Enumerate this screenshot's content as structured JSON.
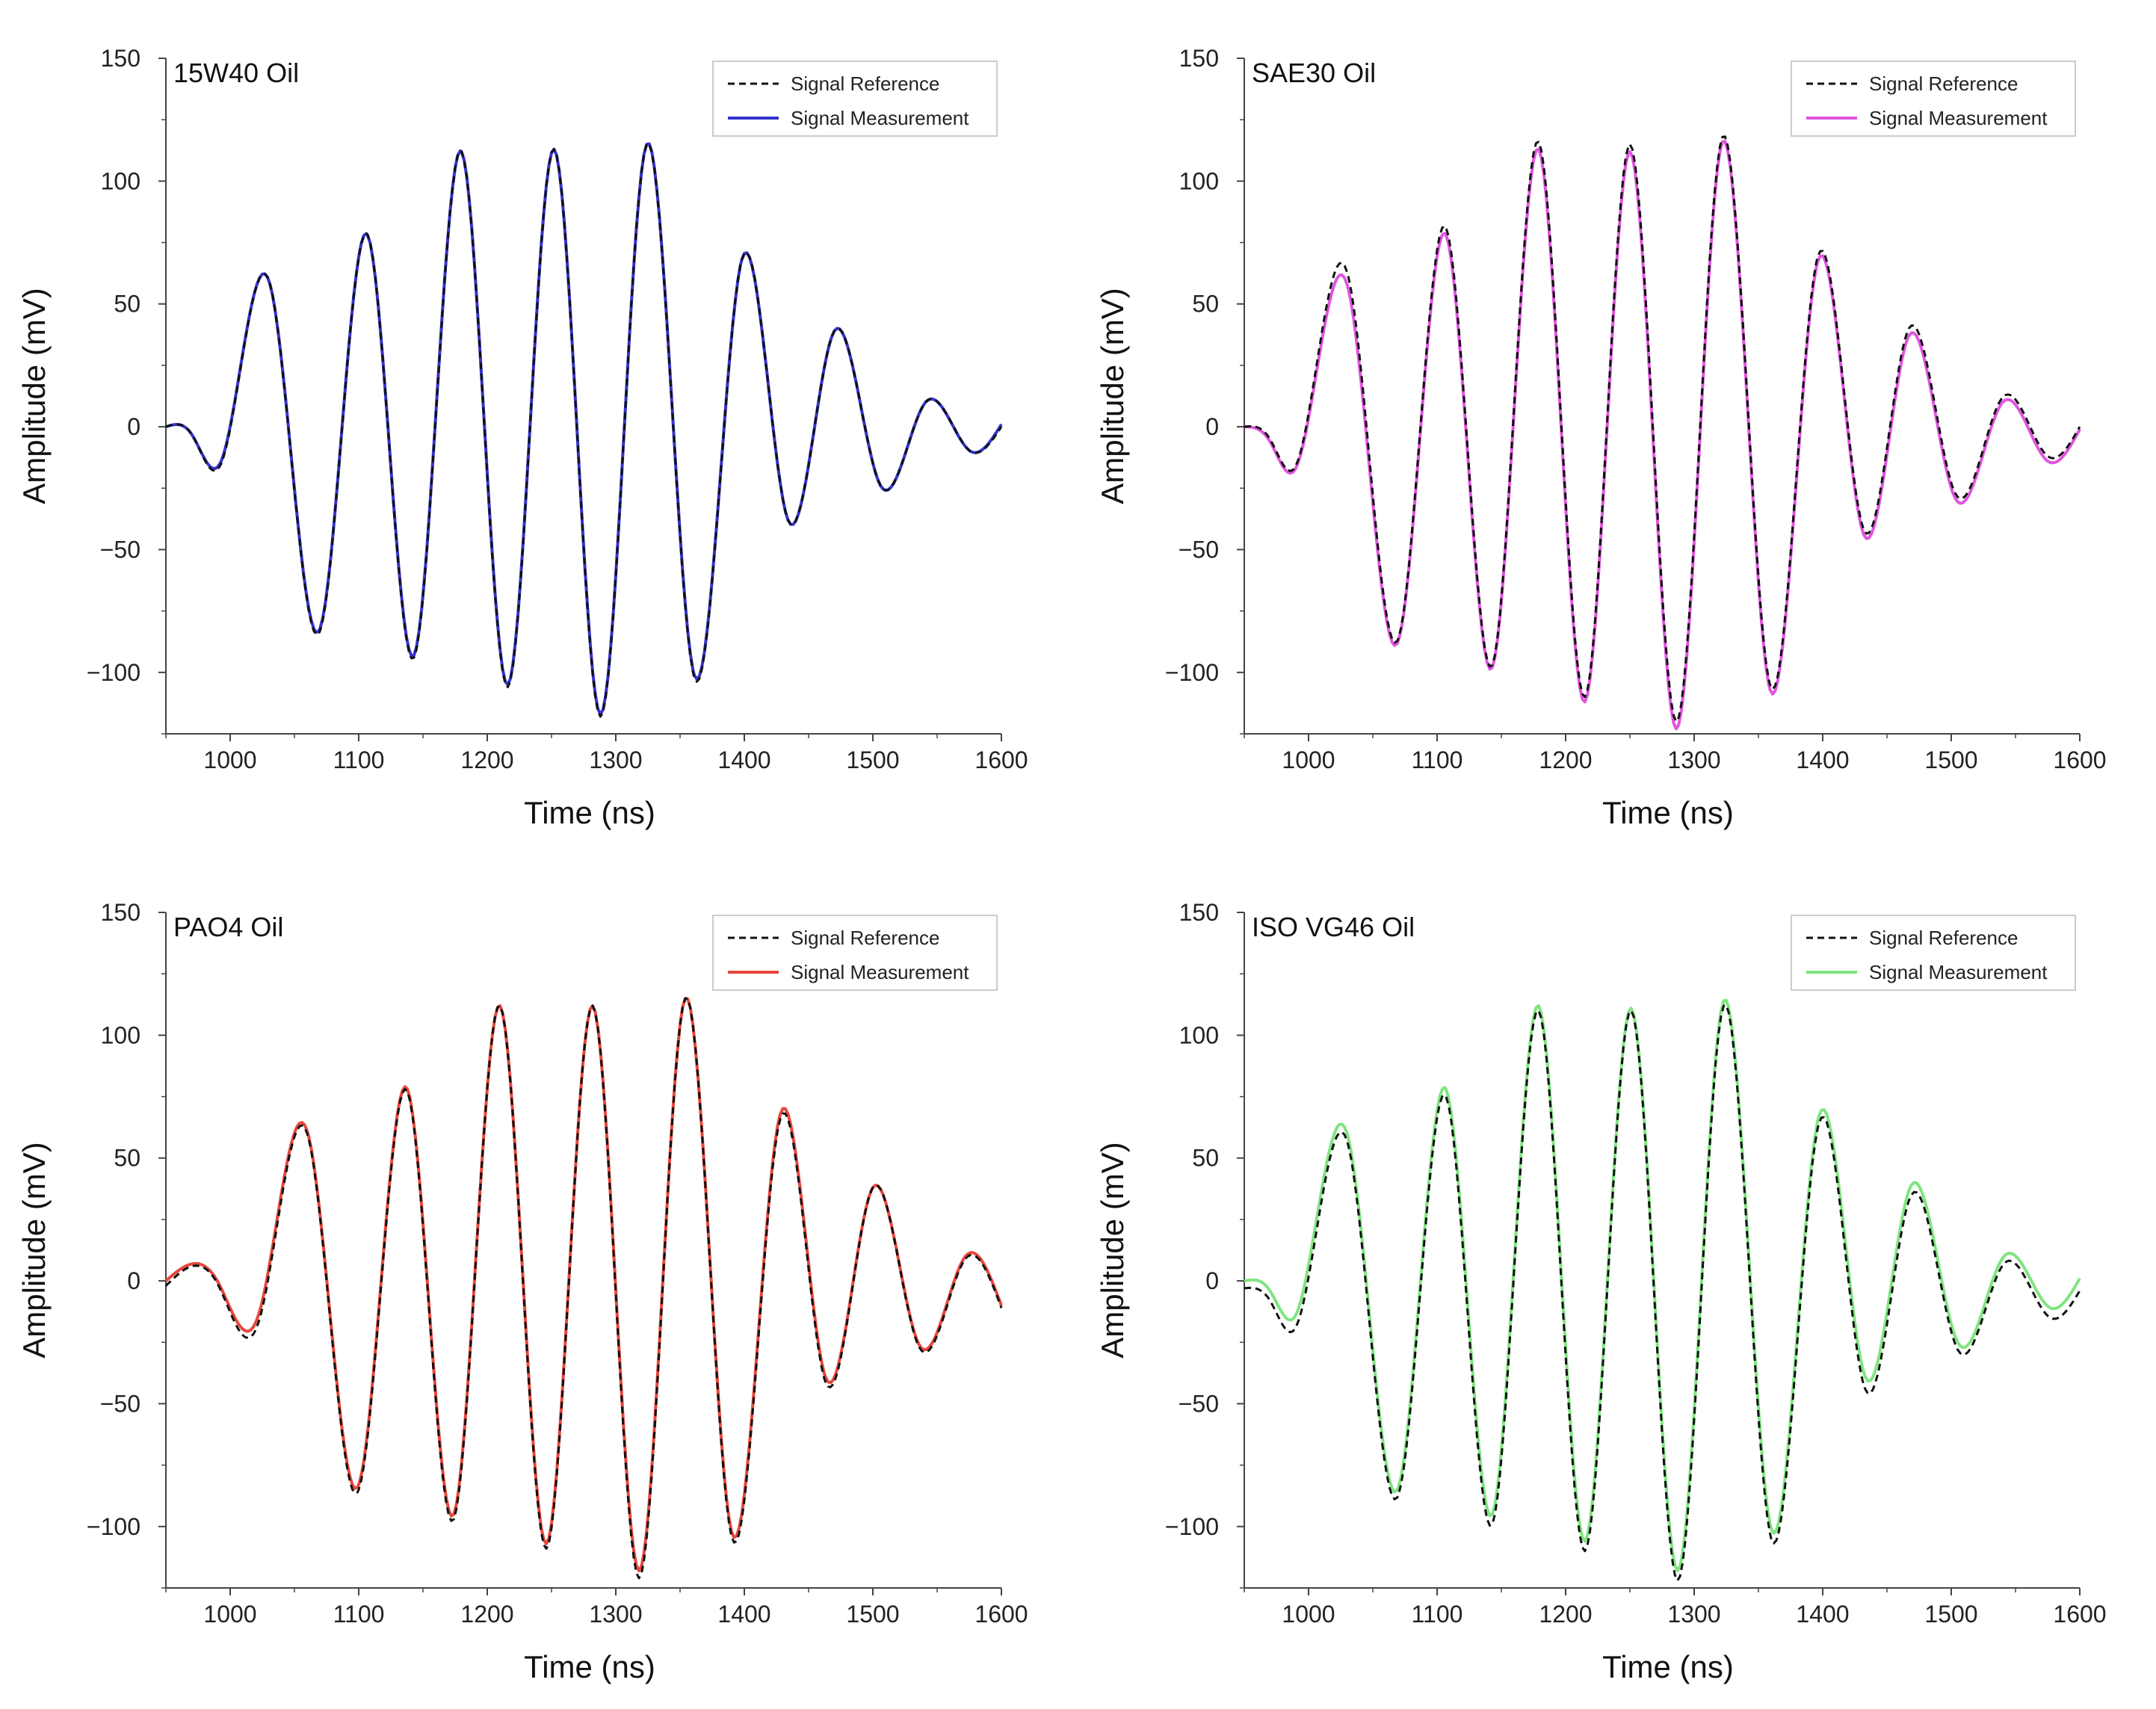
{
  "figure": {
    "type": "line"
  },
  "chart_data": [
    {
      "type": "line",
      "title": "15W40 Oil",
      "xlabel": "Time (ns)",
      "ylabel": "Amplitude (mV)",
      "xlim": [
        950,
        1600
      ],
      "ylim": [
        -125,
        150
      ],
      "xticks": [
        1000,
        1100,
        1200,
        1300,
        1400,
        1500,
        1600
      ],
      "yticks": [
        150,
        100,
        50,
        0,
        -50,
        -100
      ],
      "legend": "top-right",
      "measurement_color": "#3333cc",
      "reference_color": "#111111",
      "series": [
        {
          "name": "Signal Reference",
          "style": "dashed",
          "x": [
            950,
            970,
            993,
            1031,
            1070,
            1107,
            1143,
            1180,
            1216,
            1252,
            1288,
            1324,
            1361,
            1398,
            1434,
            1470,
            1506,
            1541,
            1576,
            1600
          ],
          "y": [
            0,
            -3,
            -15,
            58,
            -83,
            78,
            -94,
            112,
            -106,
            113,
            -118,
            115,
            -102,
            68,
            -38,
            39,
            -24,
            10,
            -10,
            0
          ]
        },
        {
          "name": "Signal Measurement",
          "style": "solid",
          "x": [
            950,
            970,
            993,
            1031,
            1070,
            1107,
            1143,
            1180,
            1216,
            1252,
            1288,
            1324,
            1361,
            1398,
            1434,
            1470,
            1506,
            1541,
            1576,
            1600
          ],
          "y": [
            0,
            -3,
            -14,
            58,
            -82,
            78,
            -93,
            112,
            -105,
            113,
            -117,
            115,
            -101,
            68,
            -38,
            39,
            -24,
            10,
            -10,
            1
          ]
        }
      ]
    },
    {
      "type": "line",
      "title": "SAE30 Oil",
      "xlabel": "Time (ns)",
      "ylabel": "Amplitude (mV)",
      "xlim": [
        950,
        1600
      ],
      "ylim": [
        -125,
        150
      ],
      "xticks": [
        1000,
        1100,
        1200,
        1300,
        1400,
        1500,
        1600
      ],
      "yticks": [
        150,
        100,
        50,
        0,
        -50,
        -100
      ],
      "legend": "top-right",
      "measurement_color": "#e055e0",
      "reference_color": "#111111",
      "series": [
        {
          "name": "Signal Reference",
          "style": "dashed",
          "x": [
            950,
            970,
            990,
            1031,
            1070,
            1107,
            1143,
            1179,
            1215,
            1250,
            1286,
            1322,
            1359,
            1396,
            1432,
            1467,
            1503,
            1540,
            1575,
            1600
          ],
          "y": [
            0,
            -5,
            -16,
            61,
            -86,
            81,
            -97,
            116,
            -110,
            115,
            -120,
            118,
            -105,
            69,
            -42,
            40,
            -27,
            12,
            -12,
            0
          ]
        },
        {
          "name": "Signal Measurement",
          "style": "solid",
          "x": [
            950,
            970,
            990,
            1031,
            1070,
            1107,
            1143,
            1179,
            1215,
            1250,
            1286,
            1322,
            1359,
            1396,
            1432,
            1467,
            1503,
            1540,
            1575,
            1600
          ],
          "y": [
            0,
            -6,
            -17,
            56,
            -87,
            78,
            -98,
            113,
            -112,
            112,
            -123,
            116,
            -107,
            67,
            -44,
            37,
            -29,
            10,
            -14,
            -1
          ]
        }
      ]
    },
    {
      "type": "line",
      "title": "PAO4 Oil",
      "xlabel": "Time (ns)",
      "ylabel": "Amplitude (mV)",
      "xlim": [
        950,
        1600
      ],
      "ylim": [
        -125,
        150
      ],
      "xticks": [
        1000,
        1100,
        1200,
        1300,
        1400,
        1500,
        1600
      ],
      "yticks": [
        150,
        100,
        50,
        0,
        -50,
        -100
      ],
      "legend": "top-right",
      "measurement_color": "#e8463c",
      "reference_color": "#111111",
      "series": [
        {
          "name": "Signal Reference",
          "style": "dashed",
          "x": [
            950,
            990,
            1022,
            1061,
            1100,
            1138,
            1174,
            1210,
            1246,
            1282,
            1318,
            1354,
            1390,
            1428,
            1463,
            1500,
            1536,
            1572,
            1600
          ],
          "y": [
            -2,
            -1,
            -17,
            58,
            -85,
            77,
            -97,
            112,
            -109,
            112,
            -121,
            115,
            -104,
            66,
            -41,
            38,
            -27,
            9,
            -11
          ]
        },
        {
          "name": "Signal Measurement",
          "style": "solid",
          "x": [
            950,
            990,
            1022,
            1061,
            1100,
            1138,
            1174,
            1210,
            1246,
            1282,
            1318,
            1354,
            1390,
            1428,
            1463,
            1500,
            1536,
            1572,
            1600
          ],
          "y": [
            0,
            0,
            -14,
            59,
            -83,
            78,
            -95,
            112,
            -107,
            112,
            -118,
            115,
            -102,
            68,
            -39,
            38,
            -26,
            10,
            -10
          ]
        }
      ]
    },
    {
      "type": "line",
      "title": "ISO VG46 Oil",
      "xlabel": "Time (ns)",
      "ylabel": "Amplitude (mV)",
      "xlim": [
        950,
        1600
      ],
      "ylim": [
        -125,
        150
      ],
      "xticks": [
        1000,
        1100,
        1200,
        1300,
        1400,
        1500,
        1600
      ],
      "yticks": [
        150,
        100,
        50,
        0,
        -50,
        -100
      ],
      "legend": "top-right",
      "measurement_color": "#7fe57f",
      "reference_color": "#111111",
      "series": [
        {
          "name": "Signal Reference",
          "style": "dashed",
          "x": [
            950,
            970,
            990,
            1031,
            1070,
            1107,
            1143,
            1179,
            1215,
            1251,
            1287,
            1323,
            1360,
            1397,
            1433,
            1469,
            1505,
            1541,
            1577,
            1600
          ],
          "y": [
            -3,
            -8,
            -19,
            55,
            -87,
            75,
            -99,
            110,
            -110,
            110,
            -122,
            112,
            -105,
            64,
            -44,
            35,
            -28,
            7,
            -15,
            -4
          ]
        },
        {
          "name": "Signal Measurement",
          "style": "solid",
          "x": [
            950,
            970,
            990,
            1031,
            1070,
            1107,
            1143,
            1179,
            1215,
            1251,
            1287,
            1323,
            1360,
            1397,
            1433,
            1469,
            1505,
            1541,
            1577,
            1600
          ],
          "y": [
            0,
            -4,
            -14,
            58,
            -84,
            78,
            -95,
            112,
            -106,
            111,
            -118,
            114,
            -101,
            67,
            -39,
            39,
            -25,
            10,
            -11,
            1
          ]
        }
      ]
    }
  ]
}
